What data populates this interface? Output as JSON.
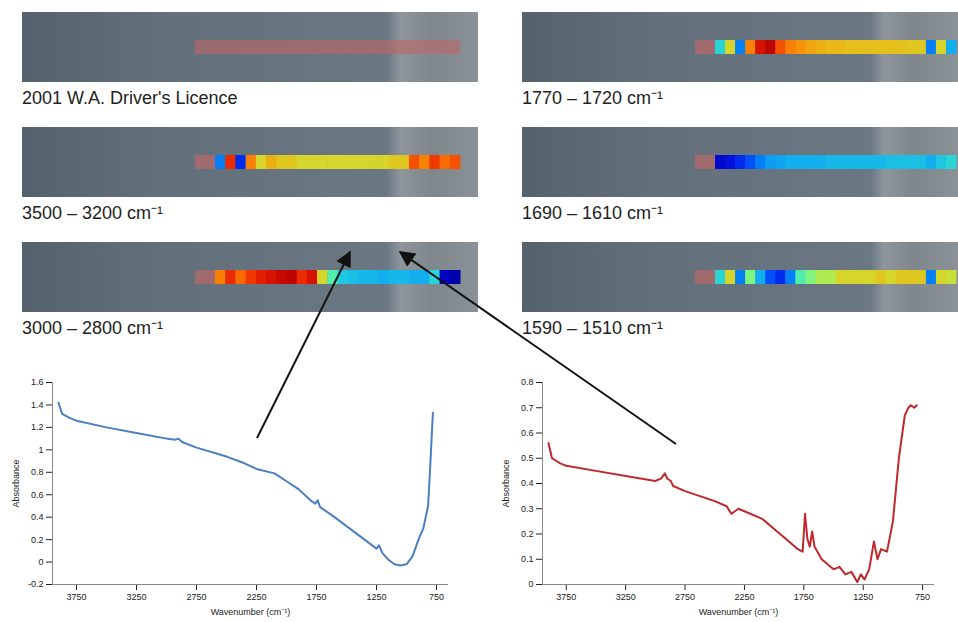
{
  "panels": [
    {
      "label": "2001 W.A. Driver's Licence"
    },
    {
      "label": "1770 – 1720 cm⁻¹",
      "intensity": [
        0.4,
        0.6,
        0.3,
        0.7,
        0.85,
        0.9,
        0.75,
        0.7,
        0.68,
        0.66,
        0.65,
        0.64,
        0.64,
        0.63,
        0.63,
        0.63,
        0.63,
        0.63,
        0.63,
        0.62,
        0.62,
        0.3,
        0.6,
        0.35
      ]
    },
    {
      "label": "3500 – 3200 cm⁻¹",
      "intensity": [
        0.3,
        0.8,
        0.2,
        0.7,
        0.6,
        0.65,
        0.62,
        0.62,
        0.6,
        0.6,
        0.6,
        0.6,
        0.6,
        0.6,
        0.6,
        0.6,
        0.6,
        0.62,
        0.62,
        0.75,
        0.7,
        0.78,
        0.72,
        0.75
      ]
    },
    {
      "label": "1690 – 1610 cm⁻¹",
      "intensity": [
        0.12,
        0.15,
        0.2,
        0.25,
        0.3,
        0.33,
        0.34,
        0.35,
        0.35,
        0.35,
        0.35,
        0.36,
        0.36,
        0.36,
        0.36,
        0.36,
        0.36,
        0.37,
        0.37,
        0.37,
        0.37,
        0.35,
        0.38,
        0.4
      ]
    },
    {
      "label": "3000 – 2800 cm⁻¹",
      "intensity": [
        0.7,
        0.8,
        0.72,
        0.78,
        0.82,
        0.85,
        0.88,
        0.9,
        0.8,
        0.85,
        0.6,
        0.45,
        0.38,
        0.37,
        0.36,
        0.36,
        0.35,
        0.36,
        0.36,
        0.35,
        0.35,
        0.4,
        0.08,
        0.05
      ]
    },
    {
      "label": "1590 – 1510 cm⁻¹",
      "intensity": [
        0.4,
        0.6,
        0.3,
        0.5,
        0.35,
        0.25,
        0.2,
        0.3,
        0.45,
        0.5,
        0.55,
        0.55,
        0.6,
        0.6,
        0.6,
        0.6,
        0.62,
        0.6,
        0.62,
        0.62,
        0.62,
        0.3,
        0.6,
        0.58
      ]
    }
  ],
  "chart_data": [
    {
      "type": "line",
      "x_label": "Wavenumber (cm⁻¹)",
      "y_label": "Absorbance",
      "xlim": [
        3950,
        650
      ],
      "xticks": [
        3750,
        3250,
        2750,
        2250,
        1750,
        1250,
        750
      ],
      "ylim": [
        -0.2,
        1.6
      ],
      "yticks": [
        -0.2,
        0,
        0.2,
        0.4,
        0.6,
        0.8,
        1,
        1.2,
        1.4,
        1.6
      ],
      "series": [
        {
          "color": "#4a7fc1",
          "x": [
            3900,
            3870,
            3800,
            3750,
            3500,
            3250,
            3000,
            2930,
            2900,
            2870,
            2750,
            2500,
            2350,
            2250,
            2100,
            2000,
            1900,
            1800,
            1760,
            1740,
            1720,
            1600,
            1500,
            1400,
            1300,
            1250,
            1230,
            1200,
            1150,
            1100,
            1050,
            1000,
            950,
            900,
            860,
            820,
            800,
            780
          ],
          "values": [
            1.42,
            1.32,
            1.28,
            1.26,
            1.2,
            1.15,
            1.1,
            1.09,
            1.1,
            1.07,
            1.02,
            0.94,
            0.88,
            0.83,
            0.79,
            0.72,
            0.65,
            0.55,
            0.52,
            0.55,
            0.49,
            0.4,
            0.32,
            0.24,
            0.16,
            0.12,
            0.15,
            0.08,
            0.02,
            -0.02,
            -0.03,
            -0.02,
            0.05,
            0.2,
            0.3,
            0.5,
            0.9,
            1.33
          ]
        }
      ]
    },
    {
      "type": "line",
      "x_label": "Wavenumber (cm⁻¹)",
      "y_label": "Absorbance",
      "xlim": [
        3950,
        650
      ],
      "xticks": [
        3750,
        3250,
        2750,
        2250,
        1750,
        1250,
        750
      ],
      "ylim": [
        0,
        0.8
      ],
      "yticks": [
        0,
        0.1,
        0.2,
        0.3,
        0.4,
        0.5,
        0.6,
        0.7,
        0.8
      ],
      "series": [
        {
          "color": "#c0282d",
          "x": [
            3900,
            3870,
            3800,
            3750,
            3500,
            3250,
            3000,
            2950,
            2920,
            2900,
            2870,
            2850,
            2750,
            2500,
            2400,
            2360,
            2330,
            2300,
            2250,
            2100,
            2000,
            1900,
            1800,
            1760,
            1740,
            1720,
            1700,
            1680,
            1660,
            1600,
            1550,
            1500,
            1450,
            1400,
            1350,
            1300,
            1270,
            1240,
            1200,
            1160,
            1130,
            1100,
            1050,
            1000,
            950,
            900,
            870,
            850,
            820,
            800
          ],
          "values": [
            0.56,
            0.5,
            0.48,
            0.47,
            0.45,
            0.43,
            0.41,
            0.42,
            0.44,
            0.42,
            0.41,
            0.39,
            0.37,
            0.33,
            0.31,
            0.28,
            0.29,
            0.3,
            0.29,
            0.26,
            0.22,
            0.18,
            0.14,
            0.13,
            0.28,
            0.18,
            0.15,
            0.21,
            0.15,
            0.1,
            0.08,
            0.06,
            0.07,
            0.04,
            0.05,
            0.01,
            0.04,
            0.02,
            0.06,
            0.17,
            0.1,
            0.14,
            0.13,
            0.25,
            0.5,
            0.67,
            0.7,
            0.71,
            0.7,
            0.71
          ]
        }
      ]
    }
  ]
}
